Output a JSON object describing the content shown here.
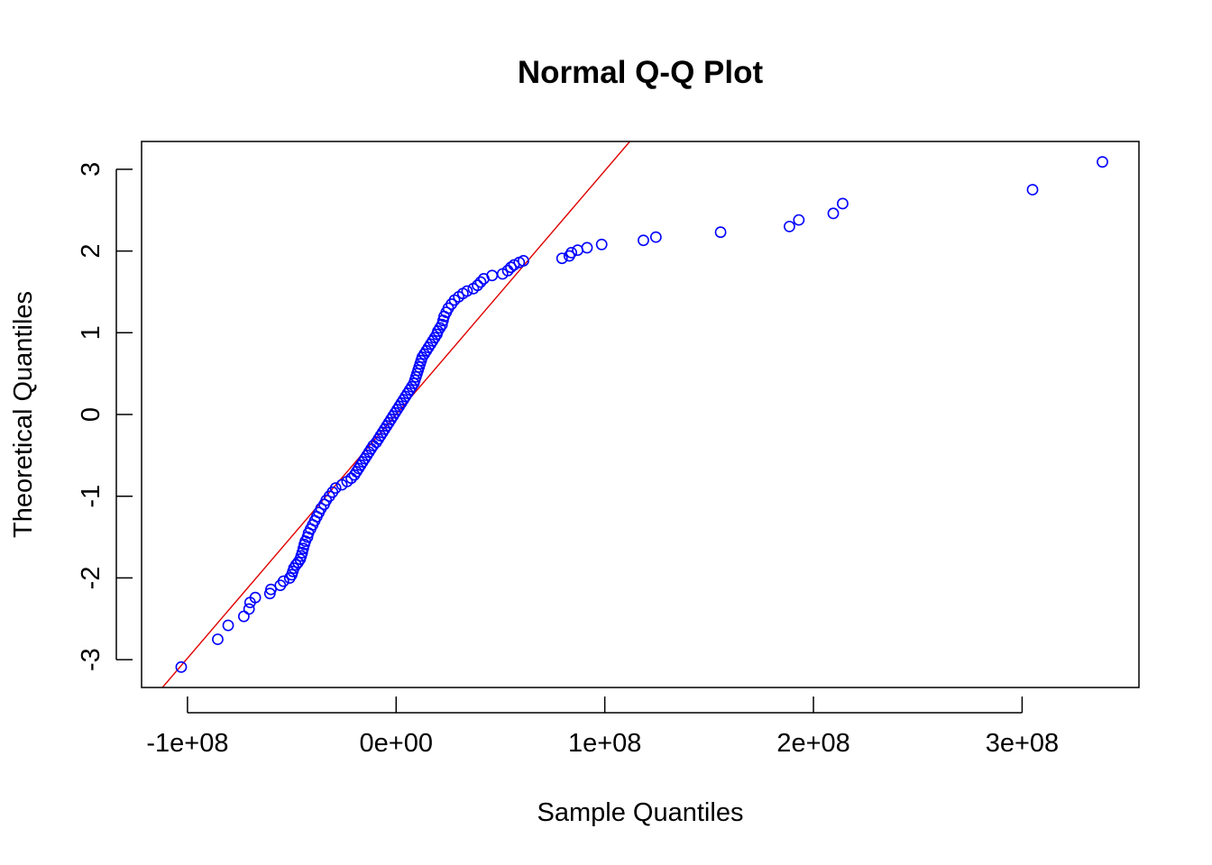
{
  "chart_data": {
    "type": "scatter",
    "title": "Normal Q-Q Plot",
    "xlabel": "Sample Quantiles",
    "ylabel": "Theoretical Quantiles",
    "xlim": [
      -122000000,
      356000000
    ],
    "ylim": [
      -3.34,
      3.34
    ],
    "x_ticks": [
      -100000000,
      0,
      100000000,
      200000000,
      300000000
    ],
    "x_tick_labels": [
      "-1e+08",
      "0e+00",
      "1e+08",
      "2e+08",
      "3e+08"
    ],
    "y_ticks": [
      -3,
      -2,
      -1,
      0,
      1,
      2,
      3
    ],
    "y_tick_labels": [
      "-3",
      "-2",
      "-1",
      "0",
      "1",
      "2",
      "3"
    ],
    "grid": false,
    "legend": "none",
    "point_color": "#0000FF",
    "line_color": "#E00000",
    "reference_line": {
      "x1": -112000000,
      "y1": -3.34,
      "x2": 112000000,
      "y2": 3.34
    },
    "series": [
      {
        "points": [
          [
            -103000000,
            -3.09
          ],
          [
            -85500000,
            -2.75
          ],
          [
            -80500000,
            -2.58
          ],
          [
            -73000000,
            -2.47
          ],
          [
            -70500000,
            -2.38
          ],
          [
            -70000000,
            -2.3
          ],
          [
            -67500000,
            -2.24
          ],
          [
            -60500000,
            -2.19
          ],
          [
            -60000000,
            -2.14
          ],
          [
            -55500000,
            -2.09
          ],
          [
            -54000000,
            -2.04
          ],
          [
            -51000000,
            -2.0
          ],
          [
            -50000000,
            -1.96
          ],
          [
            -49500000,
            -1.92
          ],
          [
            -49000000,
            -1.88
          ],
          [
            -48000000,
            -1.84
          ],
          [
            -47000000,
            -1.81
          ],
          [
            -46000000,
            -1.77
          ],
          [
            -45500000,
            -1.73
          ],
          [
            -45000000,
            -1.69
          ],
          [
            -44500000,
            -1.64
          ],
          [
            -44000000,
            -1.59
          ],
          [
            -43500000,
            -1.55
          ],
          [
            -42500000,
            -1.5
          ],
          [
            -42000000,
            -1.45
          ],
          [
            -41000000,
            -1.4
          ],
          [
            -40000000,
            -1.35
          ],
          [
            -39000000,
            -1.3
          ],
          [
            -38000000,
            -1.25
          ],
          [
            -37000000,
            -1.2
          ],
          [
            -36000000,
            -1.15
          ],
          [
            -34500000,
            -1.1
          ],
          [
            -33500000,
            -1.05
          ],
          [
            -32000000,
            -1.0
          ],
          [
            -30500000,
            -0.95
          ],
          [
            -29000000,
            -0.9
          ],
          [
            -26000000,
            -0.86
          ],
          [
            -23500000,
            -0.82
          ],
          [
            -21500000,
            -0.78
          ],
          [
            -20000000,
            -0.74
          ],
          [
            -19000000,
            -0.7
          ],
          [
            -18000000,
            -0.66
          ],
          [
            -17000000,
            -0.62
          ],
          [
            -16000000,
            -0.58
          ],
          [
            -15000000,
            -0.54
          ],
          [
            -14000000,
            -0.5
          ],
          [
            -13000000,
            -0.46
          ],
          [
            -12000000,
            -0.42
          ],
          [
            -11000000,
            -0.38
          ],
          [
            -9500000,
            -0.34
          ],
          [
            -8500000,
            -0.3
          ],
          [
            -7500000,
            -0.26
          ],
          [
            -6500000,
            -0.22
          ],
          [
            -5500000,
            -0.18
          ],
          [
            -4500000,
            -0.14
          ],
          [
            -3500000,
            -0.1
          ],
          [
            -2500000,
            -0.06
          ],
          [
            -1500000,
            -0.02
          ],
          [
            -500000,
            0.02
          ],
          [
            500000,
            0.06
          ],
          [
            1500000,
            0.1
          ],
          [
            2500000,
            0.14
          ],
          [
            3500000,
            0.18
          ],
          [
            4500000,
            0.22
          ],
          [
            5500000,
            0.26
          ],
          [
            6500000,
            0.3
          ],
          [
            7500000,
            0.34
          ],
          [
            8500000,
            0.38
          ],
          [
            9000000,
            0.42
          ],
          [
            9500000,
            0.46
          ],
          [
            10000000,
            0.5
          ],
          [
            10500000,
            0.54
          ],
          [
            11000000,
            0.58
          ],
          [
            11500000,
            0.62
          ],
          [
            12000000,
            0.66
          ],
          [
            12500000,
            0.7
          ],
          [
            13500000,
            0.74
          ],
          [
            14500000,
            0.78
          ],
          [
            15500000,
            0.82
          ],
          [
            16500000,
            0.86
          ],
          [
            17500000,
            0.9
          ],
          [
            18500000,
            0.94
          ],
          [
            19500000,
            0.98
          ],
          [
            20000000,
            1.02
          ],
          [
            21000000,
            1.06
          ],
          [
            22000000,
            1.1
          ],
          [
            22500000,
            1.15
          ],
          [
            23000000,
            1.2
          ],
          [
            24000000,
            1.25
          ],
          [
            25000000,
            1.3
          ],
          [
            26500000,
            1.35
          ],
          [
            28000000,
            1.4
          ],
          [
            30000000,
            1.44
          ],
          [
            32000000,
            1.48
          ],
          [
            34000000,
            1.51
          ],
          [
            37000000,
            1.54
          ],
          [
            39000000,
            1.58
          ],
          [
            40500000,
            1.62
          ],
          [
            42000000,
            1.66
          ],
          [
            46000000,
            1.7
          ],
          [
            51000000,
            1.72
          ],
          [
            53500000,
            1.76
          ],
          [
            55000000,
            1.8
          ],
          [
            56500000,
            1.83
          ],
          [
            59000000,
            1.86
          ],
          [
            61000000,
            1.88
          ],
          [
            79500000,
            1.91
          ],
          [
            83000000,
            1.94
          ],
          [
            84000000,
            1.98
          ],
          [
            87000000,
            2.01
          ],
          [
            91500000,
            2.04
          ],
          [
            98500000,
            2.08
          ],
          [
            118500000,
            2.13
          ],
          [
            124500000,
            2.17
          ],
          [
            155500000,
            2.23
          ],
          [
            188500000,
            2.3
          ],
          [
            193000000,
            2.38
          ],
          [
            209500000,
            2.46
          ],
          [
            214000000,
            2.58
          ],
          [
            305000000,
            2.75
          ],
          [
            338500000,
            3.09
          ]
        ]
      }
    ]
  }
}
